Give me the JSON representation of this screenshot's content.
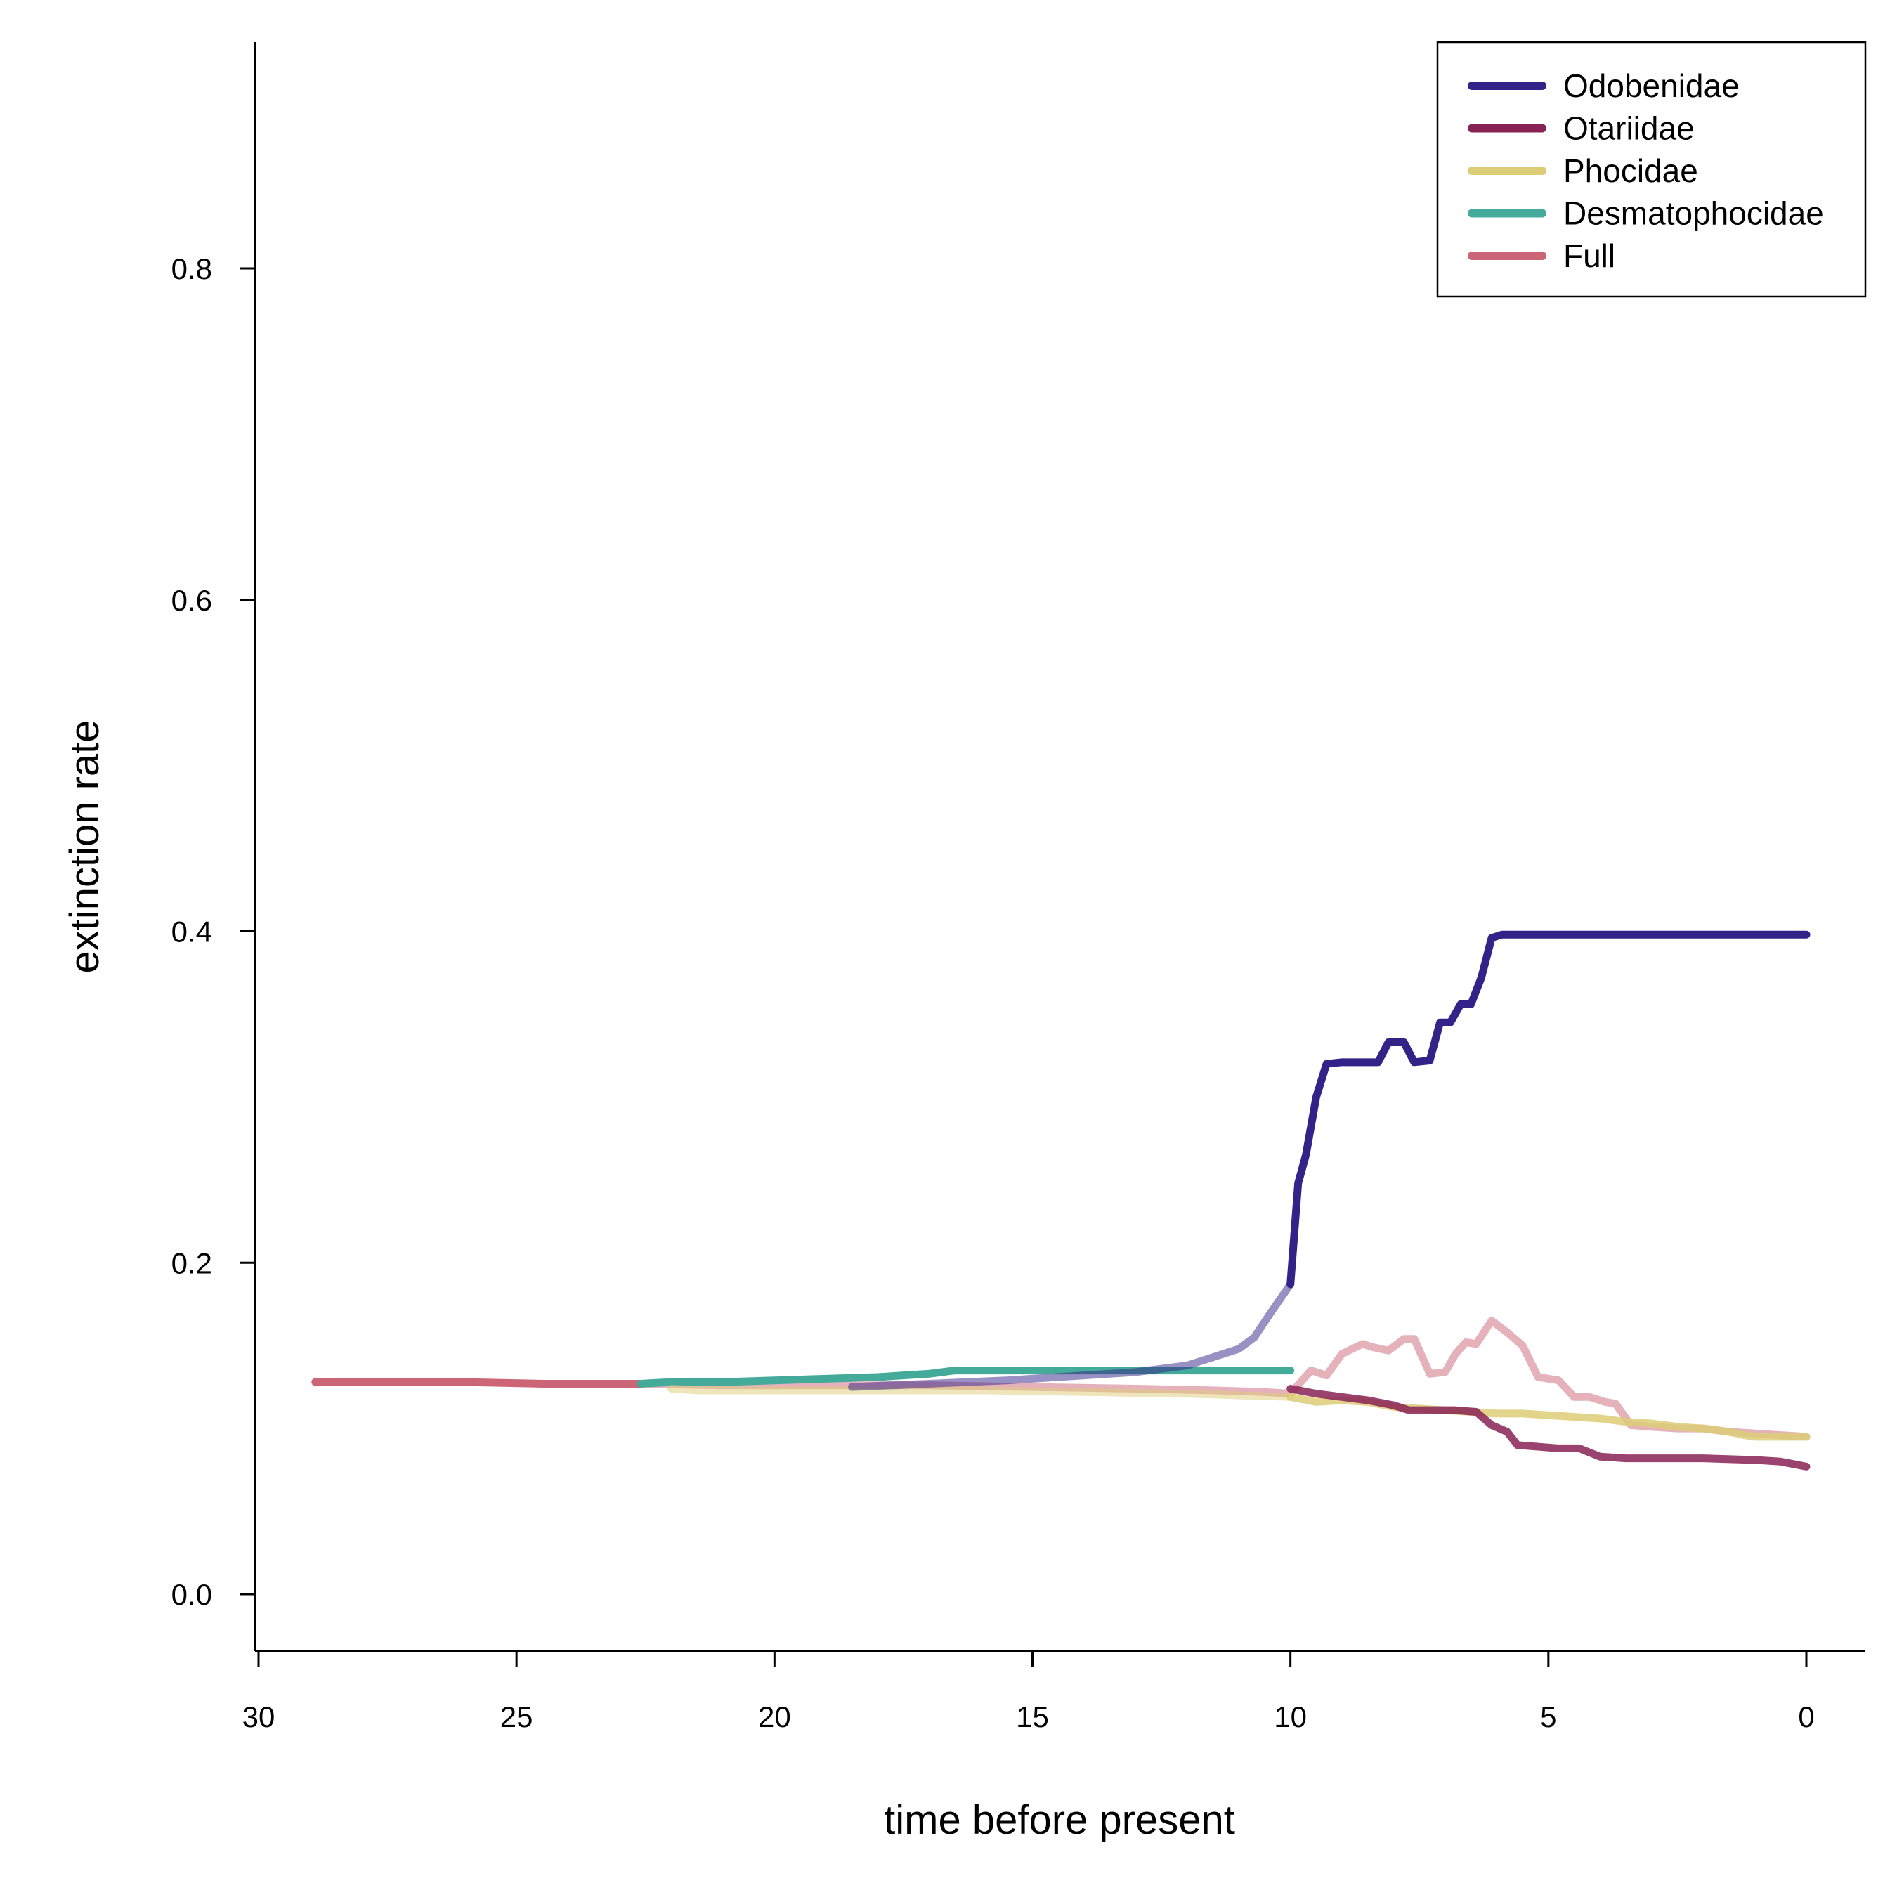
{
  "chart_data": {
    "type": "line",
    "title": "",
    "xlabel": "time before present",
    "ylabel": "extinction rate",
    "xlim": [
      30,
      0
    ],
    "ylim": [
      -0.035,
      0.935
    ],
    "x_reversed": true,
    "xticks": [
      30,
      25,
      20,
      15,
      10,
      5,
      0
    ],
    "xtick_labels": [
      "30",
      "25",
      "20",
      "15",
      "10",
      "5",
      "0"
    ],
    "yticks": [
      0.0,
      0.2,
      0.4,
      0.6,
      0.8
    ],
    "ytick_labels": [
      "0.0",
      "0.2",
      "0.4",
      "0.6",
      "0.8"
    ],
    "grid": false,
    "legend_position": "top-right",
    "series": [
      {
        "name": "Full",
        "color": "#CC6677",
        "solid_until": 22.6,
        "x": [
          28.9,
          27.5,
          26,
          24.5,
          23.5,
          22.6,
          21,
          19,
          17,
          15,
          13,
          11.5,
          10.5,
          10,
          9.6,
          9.3,
          9.0,
          8.6,
          8.4,
          8.1,
          7.8,
          7.6,
          7.3,
          7.0,
          6.8,
          6.6,
          6.4,
          6.1,
          5.8,
          5.5,
          5.2,
          4.8,
          4.5,
          4.2,
          3.9,
          3.7,
          3.4,
          3.0,
          2.5,
          2.0,
          1.5,
          1.0,
          0.5,
          0.0
        ],
        "y": [
          0.128,
          0.128,
          0.128,
          0.127,
          0.127,
          0.127,
          0.126,
          0.126,
          0.126,
          0.125,
          0.124,
          0.123,
          0.122,
          0.121,
          0.135,
          0.132,
          0.145,
          0.151,
          0.149,
          0.147,
          0.154,
          0.154,
          0.133,
          0.134,
          0.145,
          0.152,
          0.151,
          0.165,
          0.158,
          0.15,
          0.131,
          0.129,
          0.119,
          0.119,
          0.116,
          0.115,
          0.102,
          0.101,
          0.1,
          0.1,
          0.098,
          0.097,
          0.096,
          0.095
        ]
      },
      {
        "name": "Desmatophocidae",
        "color": "#44AA99",
        "solid_until": 0,
        "x": [
          22.6,
          22,
          21,
          20,
          19,
          18,
          17,
          16.5,
          16,
          15,
          14,
          13,
          12,
          11,
          10
        ],
        "y": [
          0.127,
          0.128,
          0.128,
          0.129,
          0.13,
          0.131,
          0.133,
          0.135,
          0.135,
          0.135,
          0.135,
          0.135,
          0.135,
          0.135,
          0.135
        ]
      },
      {
        "name": "Phocidae",
        "color": "#DDCC77",
        "solid_until": 10,
        "x": [
          22.0,
          21.5,
          20,
          18,
          16,
          14,
          12,
          11,
          10,
          9.5,
          9,
          8.5,
          8,
          7.5,
          7,
          6.5,
          6,
          5.5,
          5,
          4.5,
          4,
          3.5,
          3,
          2.5,
          2,
          1.5,
          1.2,
          1.0,
          0.5,
          0.0
        ],
        "y": [
          0.124,
          0.123,
          0.123,
          0.123,
          0.123,
          0.122,
          0.121,
          0.12,
          0.119,
          0.116,
          0.117,
          0.116,
          0.113,
          0.112,
          0.111,
          0.11,
          0.109,
          0.109,
          0.108,
          0.107,
          0.106,
          0.104,
          0.103,
          0.101,
          0.1,
          0.098,
          0.096,
          0.095,
          0.095,
          0.095
        ]
      },
      {
        "name": "Otariidae",
        "color": "#882255",
        "solid_until": 0,
        "faded_until": 10,
        "x": [
          10,
          9.5,
          9,
          8.5,
          8.0,
          7.7,
          7.2,
          6.8,
          6.4,
          6.1,
          5.8,
          5.6,
          5.2,
          4.8,
          4.4,
          4.0,
          3.5,
          3.0,
          2.0,
          1.0,
          0.5,
          0.0
        ],
        "y": [
          0.124,
          0.121,
          0.119,
          0.117,
          0.114,
          0.111,
          0.111,
          0.111,
          0.11,
          0.102,
          0.098,
          0.09,
          0.089,
          0.088,
          0.088,
          0.083,
          0.082,
          0.082,
          0.082,
          0.081,
          0.08,
          0.077
        ]
      },
      {
        "name": "Odobenidae",
        "color": "#332288",
        "solid_until": 10,
        "x": [
          18.5,
          17,
          15.5,
          14,
          13,
          12.5,
          12,
          11.5,
          11,
          10.7,
          10.4,
          10.0,
          9.85,
          9.7,
          9.5,
          9.3,
          9.0,
          8.7,
          8.3,
          8.1,
          7.8,
          7.6,
          7.3,
          7.1,
          6.9,
          6.7,
          6.5,
          6.3,
          6.1,
          5.9,
          5.0,
          3.0,
          1.0,
          0.0
        ],
        "y": [
          0.125,
          0.127,
          0.129,
          0.132,
          0.134,
          0.136,
          0.138,
          0.143,
          0.148,
          0.155,
          0.169,
          0.187,
          0.248,
          0.265,
          0.3,
          0.32,
          0.321,
          0.321,
          0.321,
          0.333,
          0.333,
          0.321,
          0.322,
          0.345,
          0.345,
          0.356,
          0.356,
          0.372,
          0.396,
          0.398,
          0.398,
          0.398,
          0.398,
          0.398
        ]
      }
    ],
    "legend_order": [
      "Odobenidae",
      "Otariidae",
      "Phocidae",
      "Desmatophocidae",
      "Full"
    ]
  }
}
